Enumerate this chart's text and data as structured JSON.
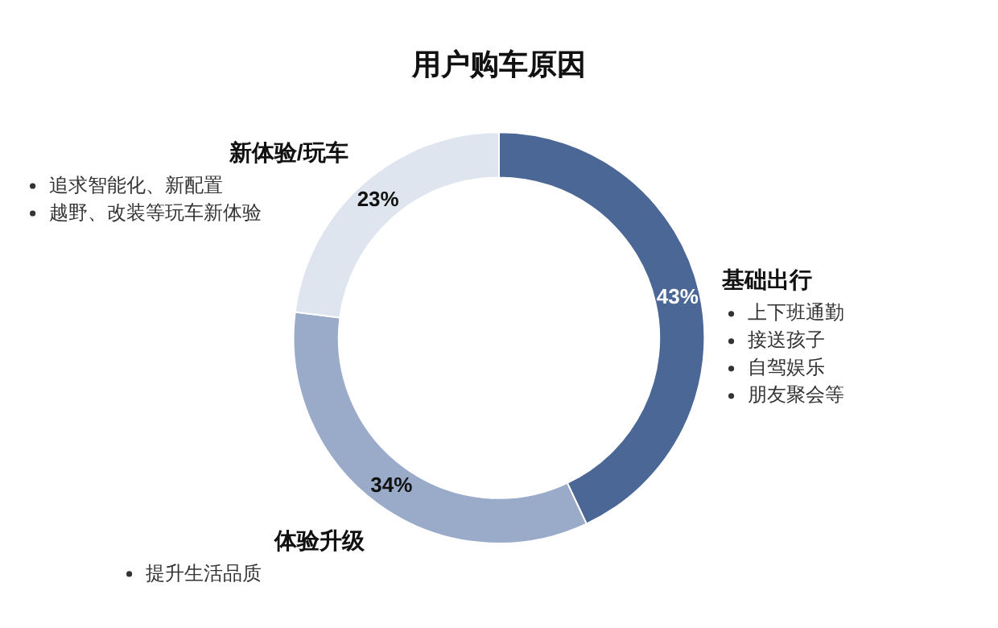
{
  "chart_data": {
    "type": "donut",
    "title": "用户购车原因",
    "categories": [
      "基础出行",
      "体验升级",
      "新体验/玩车"
    ],
    "values": [
      43,
      34,
      23
    ],
    "colors": [
      "#4a6796",
      "#9aabc9",
      "#dfe5ee"
    ],
    "value_labels": [
      "43%",
      "34%",
      "23%"
    ],
    "legend": false,
    "annotations": [
      {
        "text": "上下班通勤",
        "x": "基础出行"
      },
      {
        "text": "接送孩子",
        "x": "基础出行"
      },
      {
        "text": "自驾娱乐",
        "x": "基础出行"
      },
      {
        "text": "朋友聚会等",
        "x": "基础出行"
      },
      {
        "text": "提升生活品质",
        "x": "体验升级"
      },
      {
        "text": "追求智能化、新配置",
        "x": "新体验/玩车"
      },
      {
        "text": "越野、改装等玩车新体验",
        "x": "新体验/玩车"
      }
    ]
  }
}
